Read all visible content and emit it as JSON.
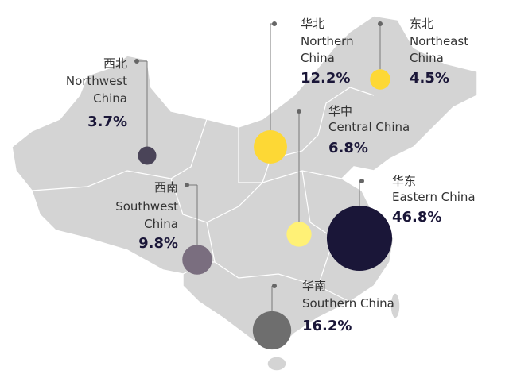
{
  "regions": [
    {
      "name_zh": "西北",
      "name_en": [
        "Northwest",
        "China"
      ],
      "value": 3.7,
      "value_label": "3.7%",
      "color": "#4a4458"
    },
    {
      "name_zh": "华北",
      "name_en": [
        "Northern",
        "China"
      ],
      "value": 12.2,
      "value_label": "12.2%",
      "color": "#fdd835"
    },
    {
      "name_zh": "东北",
      "name_en": [
        "Northeast",
        "China"
      ],
      "value": 4.5,
      "value_label": "4.5%",
      "color": "#fdd835"
    },
    {
      "name_zh": "华中",
      "name_en": [
        "Central China"
      ],
      "value": 6.8,
      "value_label": "6.8%",
      "color": "#fff176"
    },
    {
      "name_zh": "华东",
      "name_en": [
        "Eastern China"
      ],
      "value": 46.8,
      "value_label": "46.8%",
      "color": "#1a1638"
    },
    {
      "name_zh": "西南",
      "name_en": [
        "Southwest",
        "China"
      ],
      "value": 9.8,
      "value_label": "9.8%",
      "color": "#7a6e7f"
    },
    {
      "name_zh": "华南",
      "name_en": [
        "Southern China"
      ],
      "value": 16.2,
      "value_label": "16.2%",
      "color": "#6e6e6e"
    }
  ]
}
